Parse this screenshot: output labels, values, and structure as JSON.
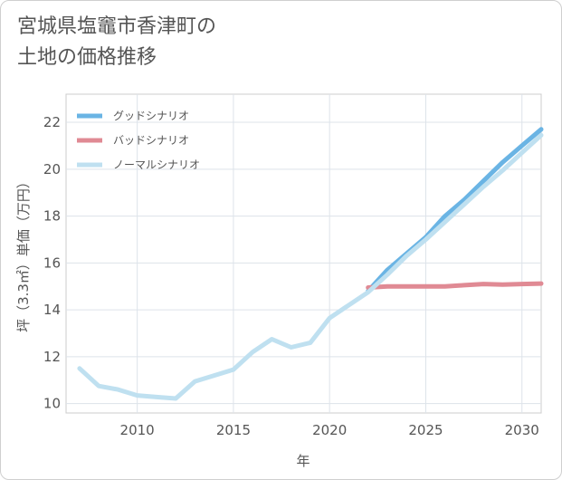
{
  "title_lines": [
    "宮城県塩竈市香津町の",
    "土地の価格推移"
  ],
  "chart_data": {
    "type": "line",
    "title": "宮城県塩竈市香津町の土地の価格推移",
    "xlabel": "年",
    "ylabel": "坪（3.3㎡）単価（万円）",
    "xlim": [
      2006.3,
      2031
    ],
    "ylim": [
      9.6,
      23.2
    ],
    "xticks": [
      2010,
      2015,
      2020,
      2025,
      2030
    ],
    "yticks": [
      10,
      12,
      14,
      16,
      18,
      20,
      22
    ],
    "grid": true,
    "legend_position": "top-left",
    "series": [
      {
        "name": "グッドシナリオ",
        "color": "#6ab4e4",
        "x": [
          2022,
          2023,
          2024,
          2025,
          2026,
          2027,
          2028,
          2029,
          2030,
          2031
        ],
        "y": [
          14.8,
          15.7,
          16.4,
          17.1,
          18.0,
          18.7,
          19.5,
          20.3,
          21.0,
          21.7
        ]
      },
      {
        "name": "バッドシナリオ",
        "color": "#e08a94",
        "x": [
          2022,
          2023,
          2024,
          2025,
          2026,
          2027,
          2028,
          2029,
          2030,
          2031
        ],
        "y": [
          14.95,
          15.0,
          15.0,
          15.0,
          15.0,
          15.05,
          15.1,
          15.08,
          15.1,
          15.12
        ]
      },
      {
        "name": "ノーマルシナリオ",
        "color": "#bfe0f0",
        "x": [
          2007,
          2008,
          2009,
          2010,
          2011,
          2012,
          2013,
          2014,
          2015,
          2016,
          2017,
          2018,
          2019,
          2020,
          2021,
          2022,
          2023,
          2024,
          2025,
          2026,
          2027,
          2028,
          2029,
          2030,
          2031
        ],
        "y": [
          11.5,
          10.75,
          10.6,
          10.35,
          10.28,
          10.22,
          10.95,
          11.2,
          11.45,
          12.2,
          12.75,
          12.4,
          12.6,
          13.65,
          14.2,
          14.75,
          15.5,
          16.3,
          17.0,
          17.75,
          18.5,
          19.25,
          19.95,
          20.7,
          21.45
        ]
      }
    ]
  }
}
